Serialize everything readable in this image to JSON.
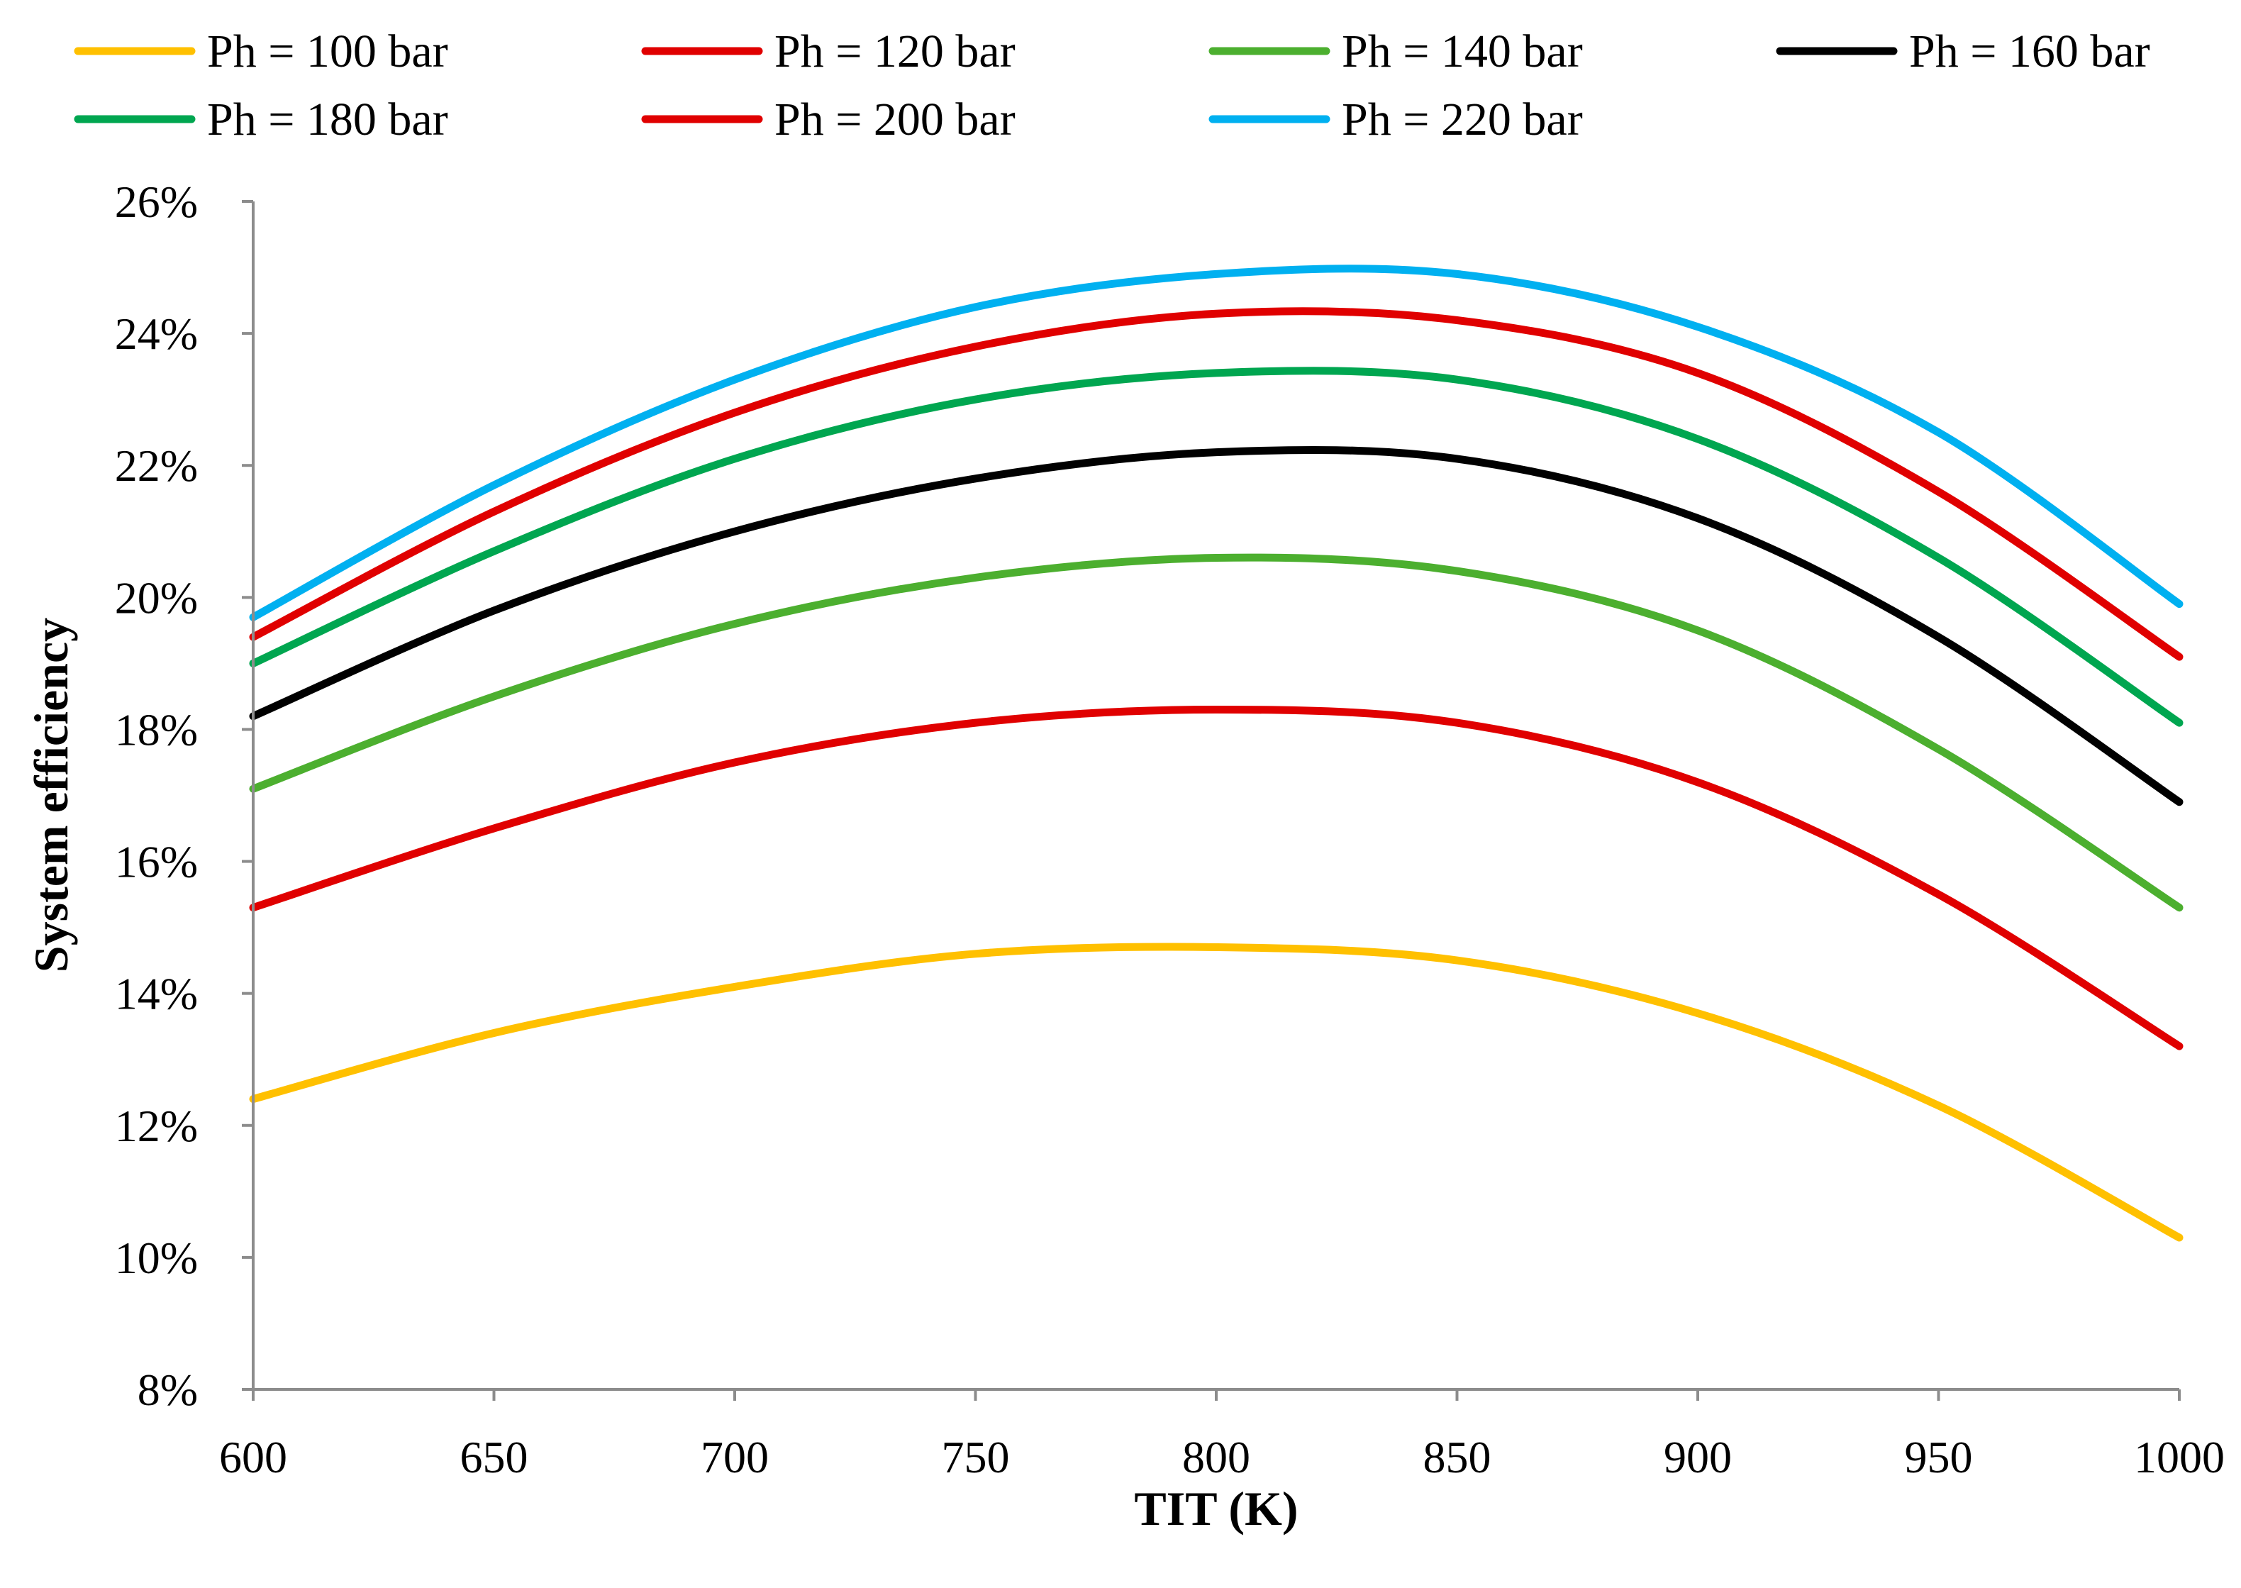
{
  "chart_data": {
    "type": "line",
    "title": "",
    "xlabel": "TIT (K)",
    "ylabel": "System efficiency",
    "xlim": [
      600,
      1000
    ],
    "ylim": [
      0.08,
      0.26
    ],
    "x_ticks": [
      "600",
      "650",
      "700",
      "750",
      "800",
      "850",
      "900",
      "950",
      "1000"
    ],
    "y_ticks": [
      "8%",
      "10%",
      "12%",
      "14%",
      "16%",
      "18%",
      "20%",
      "22%",
      "24%",
      "26%"
    ],
    "grid": false,
    "legend_position": "top",
    "x": [
      600,
      650,
      700,
      750,
      800,
      850,
      900,
      950,
      1000
    ],
    "series": [
      {
        "name": "Ph = 100 bar",
        "color": "#FFC000",
        "values": [
          0.124,
          0.134,
          0.141,
          0.146,
          0.147,
          0.145,
          0.137,
          0.123,
          0.103
        ]
      },
      {
        "name": "Ph = 120 bar",
        "color": "#E00000",
        "values": [
          0.153,
          0.165,
          0.175,
          0.181,
          0.183,
          0.181,
          0.172,
          0.155,
          0.132
        ]
      },
      {
        "name": "Ph = 140 bar",
        "color": "#4CAF2F",
        "values": [
          0.171,
          0.185,
          0.196,
          0.203,
          0.206,
          0.204,
          0.195,
          0.177,
          0.153
        ]
      },
      {
        "name": "Ph = 160 bar",
        "color": "#000000",
        "values": [
          0.182,
          0.198,
          0.21,
          0.218,
          0.222,
          0.221,
          0.212,
          0.194,
          0.169
        ]
      },
      {
        "name": "Ph = 180 bar",
        "color": "#00A650",
        "values": [
          0.19,
          0.207,
          0.221,
          0.23,
          0.234,
          0.233,
          0.224,
          0.206,
          0.181
        ]
      },
      {
        "name": "Ph = 200 bar",
        "color": "#E00000",
        "values": [
          0.194,
          0.213,
          0.228,
          0.238,
          0.243,
          0.242,
          0.234,
          0.216,
          0.191
        ]
      },
      {
        "name": "Ph = 220 bar",
        "color": "#00B0F0",
        "values": [
          0.197,
          0.217,
          0.233,
          0.244,
          0.249,
          0.249,
          0.241,
          0.225,
          0.199
        ]
      }
    ]
  }
}
